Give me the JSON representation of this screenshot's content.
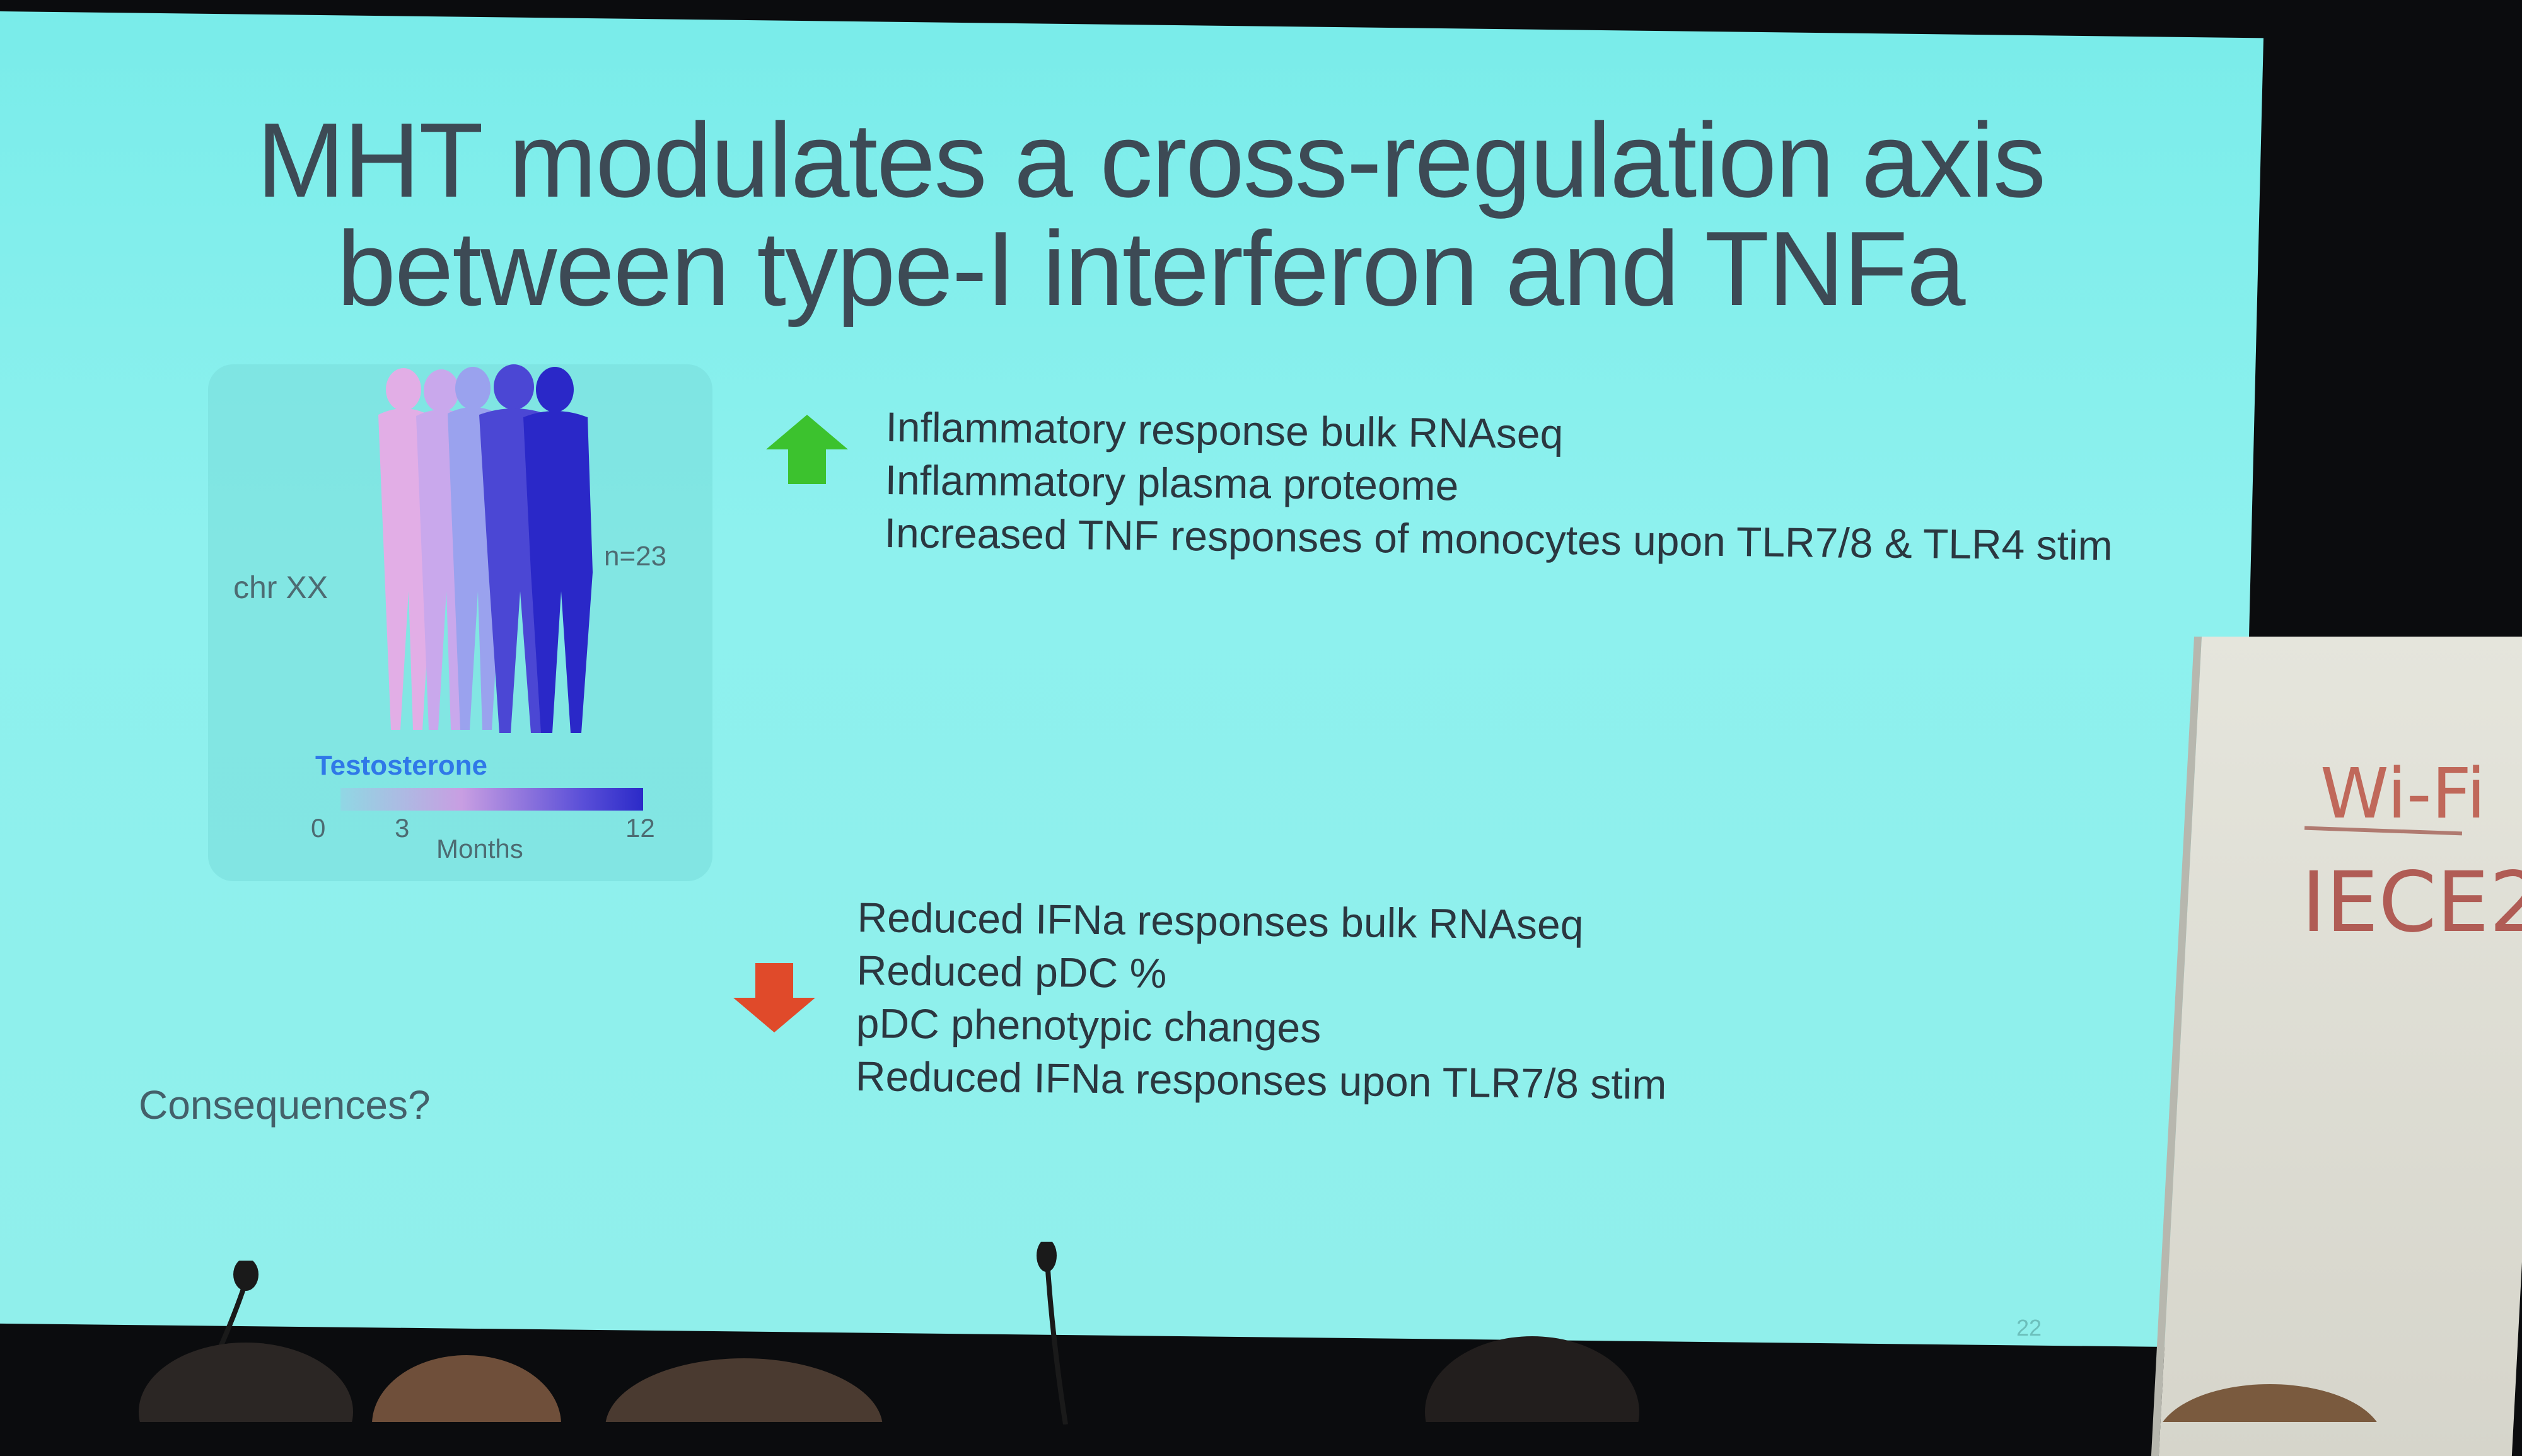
{
  "slide": {
    "title_line1": "MHT modulates a cross-regulation axis",
    "title_line2": "between type-I interferon and TNFa",
    "figure": {
      "chr_label": "chr XX",
      "n_label": "n=23",
      "testosterone_label": "Testosterone",
      "ticks": [
        "0",
        "3",
        "12"
      ],
      "months_label": "Months",
      "silhouette_colors": [
        "#e2aee6",
        "#c9a8ec",
        "#9aa2ee",
        "#4b47d4",
        "#2a28c8"
      ]
    },
    "up_icon": "green-up-arrow-icon",
    "up_color": "#3cc22e",
    "up_items": [
      "Inflammatory response bulk RNAseq",
      "Inflammatory plasma proteome",
      "Increased TNF responses of monocytes upon TLR7/8 & TLR4 stim"
    ],
    "down_icon": "red-down-arrow-icon",
    "down_color": "#e04a2a",
    "down_items": [
      "Reduced IFNa responses bulk RNAseq",
      "Reduced pDC %",
      "pDC phenotypic changes",
      "Reduced IFNa responses upon TLR7/8 stim"
    ],
    "consequences": "Consequences?",
    "page_number": "22"
  },
  "flipchart": {
    "line1": "Wi-Fi",
    "line2": "IECE2"
  }
}
